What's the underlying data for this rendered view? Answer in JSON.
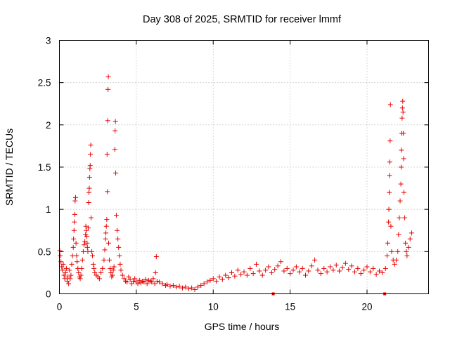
{
  "chart_data": {
    "type": "scatter",
    "title": "Day 308 of 2025, SRMTID for receiver lmmf",
    "xlabel": "GPS time / hours",
    "ylabel": "SRMTID / TECUs",
    "xlim": [
      0,
      24
    ],
    "ylim": [
      0,
      3
    ],
    "x_ticks": [
      0,
      5,
      10,
      15,
      20
    ],
    "x_tick_labels": [
      "0",
      "5",
      "10",
      "15",
      "20"
    ],
    "y_ticks": [
      0,
      0.5,
      1,
      1.5,
      2,
      2.5,
      3
    ],
    "y_tick_labels": [
      "0",
      "0.5",
      "1",
      "1.5",
      "2",
      "2.5",
      "3"
    ],
    "grid": true,
    "marker": "+",
    "color": "#e60000",
    "series": [
      {
        "name": "SRMTID",
        "points": [
          [
            0.02,
            0.51
          ],
          [
            0.05,
            0.45
          ],
          [
            0.1,
            0.38
          ],
          [
            0.15,
            0.32
          ],
          [
            0.2,
            0.28
          ],
          [
            0.25,
            0.35
          ],
          [
            0.3,
            0.22
          ],
          [
            0.35,
            0.18
          ],
          [
            0.4,
            0.25
          ],
          [
            0.45,
            0.3
          ],
          [
            0.5,
            0.15
          ],
          [
            0.55,
            0.2
          ],
          [
            0.6,
            0.12
          ],
          [
            0.65,
            0.28
          ],
          [
            0.7,
            0.18
          ],
          [
            0.75,
            0.22
          ],
          [
            0.8,
            0.35
          ],
          [
            0.85,
            0.45
          ],
          [
            0.9,
            0.55
          ],
          [
            0.92,
            0.65
          ],
          [
            0.95,
            0.75
          ],
          [
            0.97,
            0.85
          ],
          [
            1.0,
            0.94
          ],
          [
            1.02,
            1.1
          ],
          [
            1.05,
            1.14
          ],
          [
            1.08,
            0.6
          ],
          [
            1.12,
            0.45
          ],
          [
            1.15,
            0.38
          ],
          [
            1.2,
            0.3
          ],
          [
            1.25,
            0.25
          ],
          [
            1.3,
            0.2
          ],
          [
            1.35,
            0.18
          ],
          [
            1.4,
            0.22
          ],
          [
            1.45,
            0.3
          ],
          [
            1.5,
            0.4
          ],
          [
            1.55,
            0.5
          ],
          [
            1.6,
            0.58
          ],
          [
            1.65,
            0.62
          ],
          [
            1.7,
            0.7
          ],
          [
            1.72,
            0.8
          ],
          [
            1.75,
            0.75
          ],
          [
            1.78,
            0.68
          ],
          [
            1.8,
            0.6
          ],
          [
            1.82,
            0.55
          ],
          [
            1.85,
            0.5
          ],
          [
            1.88,
            0.78
          ],
          [
            1.9,
            1.08
          ],
          [
            1.92,
            1.2
          ],
          [
            1.94,
            1.25
          ],
          [
            1.96,
            1.38
          ],
          [
            1.98,
            1.48
          ],
          [
            2.0,
            1.52
          ],
          [
            2.02,
            1.65
          ],
          [
            2.04,
            1.76
          ],
          [
            2.06,
            0.9
          ],
          [
            2.1,
            0.5
          ],
          [
            2.15,
            0.45
          ],
          [
            2.2,
            0.35
          ],
          [
            2.25,
            0.3
          ],
          [
            2.3,
            0.25
          ],
          [
            2.4,
            0.22
          ],
          [
            2.5,
            0.2
          ],
          [
            2.6,
            0.18
          ],
          [
            2.7,
            0.25
          ],
          [
            2.8,
            0.3
          ],
          [
            2.9,
            0.4
          ],
          [
            2.95,
            0.52
          ],
          [
            3.0,
            0.65
          ],
          [
            3.02,
            0.72
          ],
          [
            3.05,
            0.8
          ],
          [
            3.08,
            0.88
          ],
          [
            3.1,
            1.65
          ],
          [
            3.12,
            1.21
          ],
          [
            3.14,
            2.05
          ],
          [
            3.16,
            2.42
          ],
          [
            3.18,
            2.57
          ],
          [
            3.2,
            0.6
          ],
          [
            3.25,
            0.4
          ],
          [
            3.3,
            0.3
          ],
          [
            3.35,
            0.25
          ],
          [
            3.4,
            0.2
          ],
          [
            3.45,
            0.22
          ],
          [
            3.5,
            0.28
          ],
          [
            3.55,
            0.32
          ],
          [
            3.6,
            1.71
          ],
          [
            3.62,
            1.93
          ],
          [
            3.64,
            2.04
          ],
          [
            3.66,
            1.43
          ],
          [
            3.7,
            0.93
          ],
          [
            3.75,
            0.75
          ],
          [
            3.8,
            0.65
          ],
          [
            3.85,
            0.55
          ],
          [
            3.9,
            0.45
          ],
          [
            3.95,
            0.35
          ],
          [
            4.0,
            0.28
          ],
          [
            4.1,
            0.22
          ],
          [
            4.2,
            0.18
          ],
          [
            4.3,
            0.15
          ],
          [
            4.4,
            0.14
          ],
          [
            4.5,
            0.2
          ],
          [
            4.6,
            0.17
          ],
          [
            4.7,
            0.12
          ],
          [
            4.8,
            0.15
          ],
          [
            4.9,
            0.18
          ],
          [
            5.0,
            0.14
          ],
          [
            5.1,
            0.12
          ],
          [
            5.2,
            0.16
          ],
          [
            5.3,
            0.13
          ],
          [
            5.4,
            0.15
          ],
          [
            5.5,
            0.14
          ],
          [
            5.6,
            0.17
          ],
          [
            5.7,
            0.12
          ],
          [
            5.8,
            0.16
          ],
          [
            5.9,
            0.15
          ],
          [
            6.0,
            0.14
          ],
          [
            6.1,
            0.18
          ],
          [
            6.2,
            0.12
          ],
          [
            6.25,
            0.25
          ],
          [
            6.3,
            0.44
          ],
          [
            6.35,
            0.15
          ],
          [
            6.5,
            0.14
          ],
          [
            6.7,
            0.12
          ],
          [
            6.9,
            0.1
          ],
          [
            7.0,
            0.11
          ],
          [
            7.2,
            0.09
          ],
          [
            7.4,
            0.1
          ],
          [
            7.6,
            0.08
          ],
          [
            7.8,
            0.09
          ],
          [
            8.0,
            0.07
          ],
          [
            8.2,
            0.08
          ],
          [
            8.4,
            0.06
          ],
          [
            8.6,
            0.07
          ],
          [
            8.8,
            0.05
          ],
          [
            9.0,
            0.08
          ],
          [
            9.2,
            0.1
          ],
          [
            9.4,
            0.12
          ],
          [
            9.6,
            0.14
          ],
          [
            9.8,
            0.16
          ],
          [
            10.0,
            0.18
          ],
          [
            10.2,
            0.15
          ],
          [
            10.4,
            0.2
          ],
          [
            10.6,
            0.17
          ],
          [
            10.8,
            0.22
          ],
          [
            11.0,
            0.19
          ],
          [
            11.2,
            0.25
          ],
          [
            11.4,
            0.21
          ],
          [
            11.6,
            0.28
          ],
          [
            11.8,
            0.23
          ],
          [
            12.0,
            0.26
          ],
          [
            12.2,
            0.22
          ],
          [
            12.4,
            0.3
          ],
          [
            12.6,
            0.24
          ],
          [
            12.8,
            0.35
          ],
          [
            13.0,
            0.27
          ],
          [
            13.2,
            0.22
          ],
          [
            13.4,
            0.28
          ],
          [
            13.6,
            0.32
          ],
          [
            13.8,
            0.25
          ],
          [
            14.0,
            0.29
          ],
          [
            14.2,
            0.33
          ],
          [
            14.4,
            0.38
          ],
          [
            14.6,
            0.27
          ],
          [
            14.8,
            0.3
          ],
          [
            15.0,
            0.24
          ],
          [
            15.2,
            0.28
          ],
          [
            15.4,
            0.32
          ],
          [
            15.6,
            0.26
          ],
          [
            15.8,
            0.3
          ],
          [
            16.0,
            0.22
          ],
          [
            16.2,
            0.27
          ],
          [
            16.4,
            0.33
          ],
          [
            16.6,
            0.4
          ],
          [
            16.8,
            0.28
          ],
          [
            17.0,
            0.24
          ],
          [
            17.2,
            0.3
          ],
          [
            17.4,
            0.26
          ],
          [
            17.6,
            0.32
          ],
          [
            17.8,
            0.28
          ],
          [
            18.0,
            0.34
          ],
          [
            18.2,
            0.27
          ],
          [
            18.4,
            0.31
          ],
          [
            18.6,
            0.36
          ],
          [
            18.8,
            0.29
          ],
          [
            19.0,
            0.33
          ],
          [
            19.2,
            0.26
          ],
          [
            19.4,
            0.3
          ],
          [
            19.6,
            0.24
          ],
          [
            19.8,
            0.28
          ],
          [
            20.0,
            0.32
          ],
          [
            20.2,
            0.26
          ],
          [
            20.4,
            0.3
          ],
          [
            20.6,
            0.23
          ],
          [
            20.8,
            0.27
          ],
          [
            21.0,
            0.25
          ],
          [
            21.2,
            0.3
          ],
          [
            21.3,
            0.45
          ],
          [
            21.35,
            0.6
          ],
          [
            21.4,
            0.85
          ],
          [
            21.42,
            1.0
          ],
          [
            21.44,
            1.2
          ],
          [
            21.46,
            1.4
          ],
          [
            21.48,
            1.56
          ],
          [
            21.5,
            1.81
          ],
          [
            21.52,
            2.24
          ],
          [
            21.55,
            0.8
          ],
          [
            21.6,
            0.5
          ],
          [
            21.7,
            0.4
          ],
          [
            21.8,
            0.35
          ],
          [
            21.9,
            0.4
          ],
          [
            22.0,
            0.5
          ],
          [
            22.05,
            0.7
          ],
          [
            22.1,
            0.9
          ],
          [
            22.15,
            1.1
          ],
          [
            22.2,
            1.3
          ],
          [
            22.22,
            1.5
          ],
          [
            22.24,
            1.7
          ],
          [
            22.26,
            1.9
          ],
          [
            22.28,
            2.08
          ],
          [
            22.3,
            2.2
          ],
          [
            22.32,
            2.28
          ],
          [
            22.34,
            2.15
          ],
          [
            22.36,
            1.9
          ],
          [
            22.38,
            1.6
          ],
          [
            22.4,
            1.2
          ],
          [
            22.45,
            0.9
          ],
          [
            22.5,
            0.6
          ],
          [
            22.55,
            0.5
          ],
          [
            22.6,
            0.45
          ],
          [
            22.7,
            0.55
          ],
          [
            22.8,
            0.65
          ],
          [
            22.9,
            0.72
          ]
        ],
        "markers_on_x_axis": [
          13.9,
          21.15
        ]
      }
    ]
  }
}
